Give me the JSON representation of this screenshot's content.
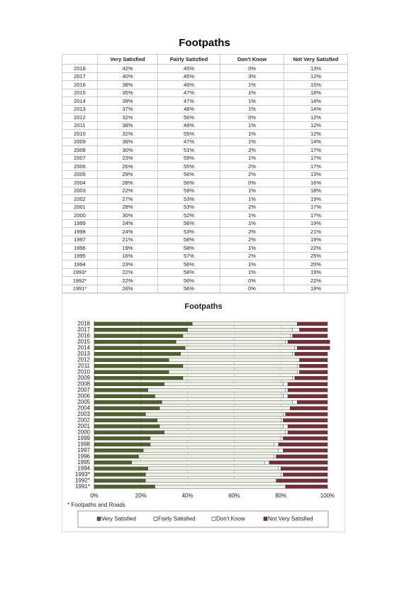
{
  "header": {
    "title": "Footpaths"
  },
  "table": {
    "headers": [
      "",
      "Very Satisfied",
      "Fairly Satisfied",
      "Don't Know",
      "Not Very Satisfied"
    ],
    "rows": [
      [
        "2018",
        "42%",
        "45%",
        "0%",
        "13%"
      ],
      [
        "2017",
        "40%",
        "45%",
        "3%",
        "12%"
      ],
      [
        "2016",
        "38%",
        "46%",
        "1%",
        "15%"
      ],
      [
        "2015",
        "35%",
        "47%",
        "1%",
        "18%"
      ],
      [
        "2014",
        "39%",
        "47%",
        "1%",
        "14%"
      ],
      [
        "2013",
        "37%",
        "48%",
        "1%",
        "14%"
      ],
      [
        "2012",
        "32%",
        "56%",
        "0%",
        "12%"
      ],
      [
        "2011",
        "38%",
        "49%",
        "1%",
        "12%"
      ],
      [
        "2010",
        "32%",
        "55%",
        "1%",
        "12%"
      ],
      [
        "2009",
        "38%",
        "47%",
        "1%",
        "14%"
      ],
      [
        "2008",
        "30%",
        "51%",
        "2%",
        "17%"
      ],
      [
        "2007",
        "23%",
        "59%",
        "1%",
        "17%"
      ],
      [
        "2006",
        "26%",
        "55%",
        "2%",
        "17%"
      ],
      [
        "2005",
        "29%",
        "56%",
        "2%",
        "13%"
      ],
      [
        "2004",
        "28%",
        "56%",
        "0%",
        "16%"
      ],
      [
        "2003",
        "22%",
        "59%",
        "1%",
        "18%"
      ],
      [
        "2002",
        "27%",
        "53%",
        "1%",
        "19%"
      ],
      [
        "2001",
        "28%",
        "53%",
        "2%",
        "17%"
      ],
      [
        "2000",
        "30%",
        "52%",
        "1%",
        "17%"
      ],
      [
        "1999",
        "24%",
        "56%",
        "1%",
        "19%"
      ],
      [
        "1998",
        "24%",
        "53%",
        "2%",
        "21%"
      ],
      [
        "1997",
        "21%",
        "58%",
        "2%",
        "19%"
      ],
      [
        "1996",
        "19%",
        "58%",
        "1%",
        "22%"
      ],
      [
        "1995",
        "16%",
        "57%",
        "2%",
        "25%"
      ],
      [
        "1994",
        "23%",
        "56%",
        "1%",
        "20%"
      ],
      [
        "1993*",
        "22%",
        "58%",
        "1%",
        "19%"
      ],
      [
        "1992*",
        "22%",
        "56%",
        "0%",
        "22%"
      ],
      [
        "1991*",
        "26%",
        "56%",
        "0%",
        "18%"
      ]
    ]
  },
  "chart_data": {
    "type": "bar",
    "orientation": "horizontal",
    "stacked": true,
    "title": "Footpaths",
    "footnote": "* Footpaths and Roads",
    "categories": [
      "2018",
      "2017",
      "2016",
      "2015",
      "2014",
      "2013",
      "2012",
      "2011",
      "2010",
      "2009",
      "2008",
      "2007",
      "2006",
      "2005",
      "2004",
      "2003",
      "2002",
      "2001",
      "2000",
      "1999",
      "1998",
      "1997",
      "1996",
      "1995",
      "1994",
      "1993*",
      "1992*",
      "1991*"
    ],
    "series": [
      {
        "name": "Very Satisfied",
        "color": "#4f6228",
        "values": [
          42,
          40,
          38,
          35,
          39,
          37,
          32,
          38,
          32,
          38,
          30,
          23,
          26,
          29,
          28,
          22,
          27,
          28,
          30,
          24,
          24,
          21,
          19,
          16,
          23,
          22,
          22,
          26
        ]
      },
      {
        "name": "Fairly Satisfied",
        "color": "#ebf1de",
        "values": [
          45,
          45,
          46,
          47,
          47,
          48,
          56,
          49,
          55,
          47,
          51,
          59,
          55,
          56,
          56,
          59,
          53,
          53,
          52,
          56,
          53,
          58,
          58,
          57,
          56,
          58,
          56,
          56
        ]
      },
      {
        "name": "Don't Know",
        "color": "#ffffff",
        "values": [
          0,
          3,
          1,
          1,
          1,
          1,
          0,
          1,
          1,
          1,
          2,
          1,
          2,
          2,
          0,
          1,
          1,
          2,
          1,
          1,
          2,
          2,
          1,
          2,
          1,
          1,
          0,
          0
        ]
      },
      {
        "name": "Not Very Satisfied",
        "color": "#7b2c34",
        "values": [
          13,
          12,
          15,
          18,
          14,
          14,
          12,
          12,
          12,
          14,
          17,
          17,
          17,
          13,
          16,
          18,
          19,
          17,
          17,
          19,
          21,
          19,
          22,
          25,
          20,
          19,
          22,
          18
        ]
      }
    ],
    "xlim": [
      0,
      100
    ],
    "xticks": [
      {
        "value": 0,
        "label": "0%"
      },
      {
        "value": 20,
        "label": "20%"
      },
      {
        "value": 40,
        "label": "40%"
      },
      {
        "value": 60,
        "label": "60%"
      },
      {
        "value": 80,
        "label": "80%"
      },
      {
        "value": 100,
        "label": "100%"
      }
    ],
    "grid": true
  }
}
